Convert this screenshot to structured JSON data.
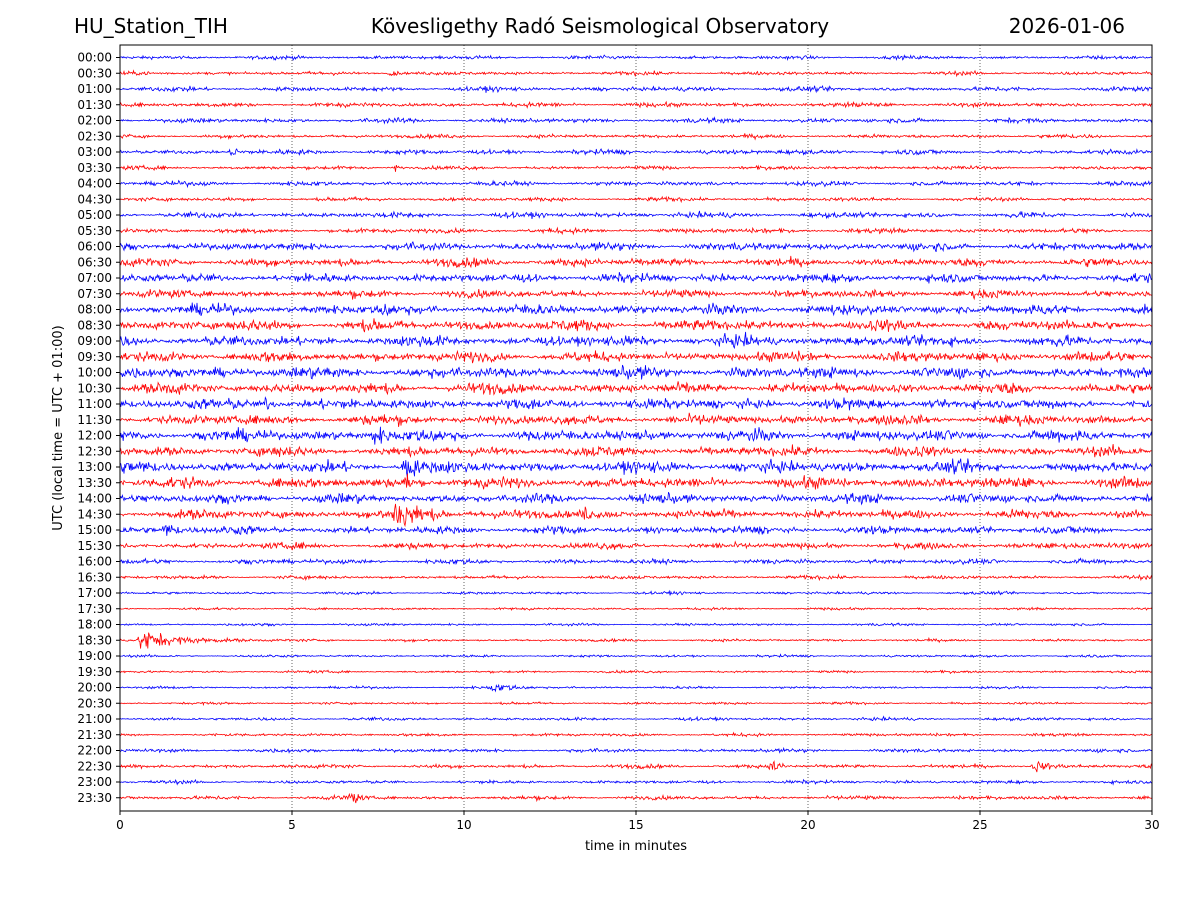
{
  "header": {
    "station": "HU_Station_TIH",
    "observatory": "Kövesligethy Radó Seismological Observatory",
    "date": "2026-01-06"
  },
  "chart_data": {
    "type": "line",
    "title": "Kövesligethy Radó Seismological Observatory",
    "xlabel": "time in minutes",
    "ylabel": "UTC (local time = UTC + 01:00)",
    "xlim": [
      0,
      30
    ],
    "xticks": [
      "0",
      "5",
      "10",
      "15",
      "20",
      "25",
      "30"
    ],
    "xtick_values": [
      0,
      5,
      10,
      15,
      20,
      25,
      30
    ],
    "grid": "vertical dotted at x ticks",
    "colors": {
      "even_rows": "#0000ff",
      "odd_rows": "#ff0000"
    },
    "rows": [
      "00:00",
      "00:30",
      "01:00",
      "01:30",
      "02:00",
      "02:30",
      "03:00",
      "03:30",
      "04:00",
      "04:30",
      "05:00",
      "05:30",
      "06:00",
      "06:30",
      "07:00",
      "07:30",
      "08:00",
      "08:30",
      "09:00",
      "09:30",
      "10:00",
      "10:30",
      "11:00",
      "11:30",
      "12:00",
      "12:30",
      "13:00",
      "13:30",
      "14:00",
      "14:30",
      "15:00",
      "15:30",
      "16:00",
      "16:30",
      "17:00",
      "17:30",
      "18:00",
      "18:30",
      "19:00",
      "19:30",
      "20:00",
      "20:30",
      "21:00",
      "21:30",
      "22:00",
      "22:30",
      "23:00",
      "23:30"
    ],
    "noise_level": [
      1.2,
      1.2,
      1.5,
      1.5,
      1.5,
      1.3,
      1.6,
      1.2,
      1.5,
      1.3,
      1.8,
      1.6,
      2.6,
      2.8,
      3.0,
      2.6,
      3.4,
      3.6,
      3.6,
      3.4,
      3.8,
      3.6,
      3.6,
      3.3,
      3.8,
      3.3,
      3.8,
      3.6,
      3.1,
      3.1,
      2.6,
      2.1,
      1.6,
      1.2,
      0.9,
      0.8,
      0.8,
      0.9,
      0.8,
      0.8,
      0.8,
      0.8,
      1.0,
      1.0,
      1.2,
      1.3,
      1.1,
      1.3
    ],
    "events": [
      {
        "row": "00:30",
        "t": 7.9,
        "amp": 3,
        "dur": 0.3
      },
      {
        "row": "03:00",
        "t": 3.3,
        "amp": 6,
        "dur": 0.3
      },
      {
        "row": "03:30",
        "t": 8.0,
        "amp": 3,
        "dur": 0.2
      },
      {
        "row": "08:00",
        "t": 7.6,
        "amp": 5,
        "dur": 0.4
      },
      {
        "row": "11:00",
        "t": 4.2,
        "amp": 5,
        "dur": 0.5
      },
      {
        "row": "12:00",
        "t": 7.4,
        "amp": 7,
        "dur": 0.6
      },
      {
        "row": "13:00",
        "t": 8.3,
        "amp": 16,
        "dur": 0.4
      },
      {
        "row": "13:30",
        "t": 8.3,
        "amp": 6,
        "dur": 0.4
      },
      {
        "row": "14:30",
        "t": 8.0,
        "amp": 9,
        "dur": 1.6
      },
      {
        "row": "14:30",
        "t": 13.5,
        "amp": 5,
        "dur": 0.2
      },
      {
        "row": "15:00",
        "t": 1.3,
        "amp": 5,
        "dur": 1.0
      },
      {
        "row": "18:30",
        "t": 0.6,
        "amp": 8,
        "dur": 2.0
      },
      {
        "row": "20:00",
        "t": 10.8,
        "amp": 3,
        "dur": 1.4
      },
      {
        "row": "22:30",
        "t": 19.0,
        "amp": 6,
        "dur": 0.3
      },
      {
        "row": "22:30",
        "t": 26.6,
        "amp": 4,
        "dur": 0.8
      },
      {
        "row": "23:30",
        "t": 6.7,
        "amp": 7,
        "dur": 0.3
      }
    ]
  }
}
